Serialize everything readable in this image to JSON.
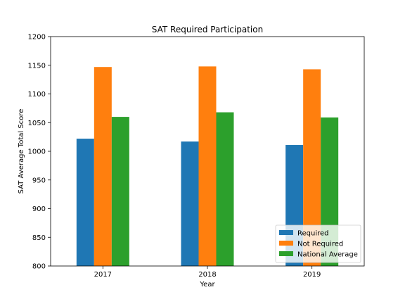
{
  "chart_data": {
    "type": "bar",
    "title": "SAT Required Participation",
    "xlabel": "Year",
    "ylabel": "SAT Average Total Score",
    "categories": [
      "2017",
      "2018",
      "2019"
    ],
    "ylim": [
      800,
      1200
    ],
    "yticks": [
      800,
      850,
      900,
      950,
      1000,
      1050,
      1100,
      1150,
      1200
    ],
    "series": [
      {
        "name": "Required",
        "color": "#1f77b4",
        "values": [
          1022,
          1017,
          1011
        ]
      },
      {
        "name": "Not Required",
        "color": "#ff7f0e",
        "values": [
          1147,
          1148,
          1143
        ]
      },
      {
        "name": "National Average",
        "color": "#2ca02c",
        "values": [
          1060,
          1068,
          1059
        ]
      }
    ],
    "legend": {
      "position": "lower-right"
    },
    "grid": false
  }
}
